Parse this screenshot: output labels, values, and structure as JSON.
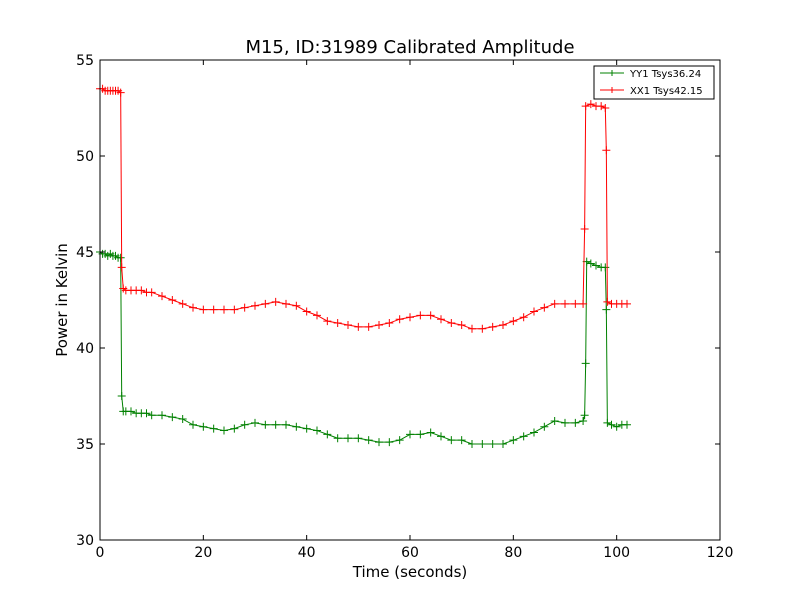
{
  "chart_data": {
    "type": "line",
    "title": "M15, ID:31989 Calibrated Amplitude",
    "xlabel": "Time (seconds)",
    "ylabel": "Power in Kelvin",
    "xlim": [
      0,
      120
    ],
    "ylim": [
      30,
      55
    ],
    "x_ticks": [
      "0",
      "20",
      "40",
      "60",
      "80",
      "100",
      "120"
    ],
    "y_ticks": [
      "30",
      "35",
      "40",
      "45",
      "50",
      "55"
    ],
    "grid": false,
    "legend_position": "top-right",
    "series": [
      {
        "name": "YY1 Tsys36.24",
        "color": "#008000",
        "marker": "+",
        "points": [
          [
            0.0,
            45.0
          ],
          [
            0.5,
            44.9
          ],
          [
            1.0,
            44.9
          ],
          [
            1.5,
            44.8
          ],
          [
            2.0,
            44.9
          ],
          [
            2.5,
            44.8
          ],
          [
            3.0,
            44.8
          ],
          [
            3.5,
            44.7
          ],
          [
            4.0,
            44.7
          ],
          [
            4.2,
            37.5
          ],
          [
            4.5,
            36.7
          ],
          [
            5.0,
            36.7
          ],
          [
            6.0,
            36.7
          ],
          [
            7.0,
            36.6
          ],
          [
            8.0,
            36.6
          ],
          [
            9.0,
            36.6
          ],
          [
            10.0,
            36.5
          ],
          [
            12.0,
            36.5
          ],
          [
            14.0,
            36.4
          ],
          [
            16.0,
            36.3
          ],
          [
            18.0,
            36.0
          ],
          [
            20.0,
            35.9
          ],
          [
            22.0,
            35.8
          ],
          [
            24.0,
            35.7
          ],
          [
            26.0,
            35.8
          ],
          [
            28.0,
            36.0
          ],
          [
            30.0,
            36.1
          ],
          [
            32.0,
            36.0
          ],
          [
            34.0,
            36.0
          ],
          [
            36.0,
            36.0
          ],
          [
            38.0,
            35.9
          ],
          [
            40.0,
            35.8
          ],
          [
            42.0,
            35.7
          ],
          [
            44.0,
            35.5
          ],
          [
            46.0,
            35.3
          ],
          [
            48.0,
            35.3
          ],
          [
            50.0,
            35.3
          ],
          [
            52.0,
            35.2
          ],
          [
            54.0,
            35.1
          ],
          [
            56.0,
            35.1
          ],
          [
            58.0,
            35.2
          ],
          [
            60.0,
            35.5
          ],
          [
            62.0,
            35.5
          ],
          [
            64.0,
            35.6
          ],
          [
            66.0,
            35.4
          ],
          [
            68.0,
            35.2
          ],
          [
            70.0,
            35.2
          ],
          [
            72.0,
            35.0
          ],
          [
            74.0,
            35.0
          ],
          [
            76.0,
            35.0
          ],
          [
            78.0,
            35.0
          ],
          [
            80.0,
            35.2
          ],
          [
            82.0,
            35.4
          ],
          [
            84.0,
            35.6
          ],
          [
            86.0,
            35.9
          ],
          [
            88.0,
            36.2
          ],
          [
            90.0,
            36.1
          ],
          [
            92.0,
            36.1
          ],
          [
            93.5,
            36.2
          ],
          [
            93.8,
            36.5
          ],
          [
            94.0,
            39.2
          ],
          [
            94.2,
            44.5
          ],
          [
            95.0,
            44.4
          ],
          [
            96.0,
            44.3
          ],
          [
            97.0,
            44.2
          ],
          [
            97.8,
            44.2
          ],
          [
            98.0,
            42.0
          ],
          [
            98.2,
            36.1
          ],
          [
            99.0,
            36.0
          ],
          [
            100.0,
            35.9
          ],
          [
            101.0,
            36.0
          ],
          [
            102.0,
            36.0
          ]
        ]
      },
      {
        "name": "XX1 Tsys42.15",
        "color": "#ff0000",
        "marker": "+",
        "points": [
          [
            0.0,
            53.5
          ],
          [
            0.5,
            53.5
          ],
          [
            1.0,
            53.4
          ],
          [
            1.5,
            53.4
          ],
          [
            2.0,
            53.4
          ],
          [
            2.5,
            53.4
          ],
          [
            3.0,
            53.4
          ],
          [
            3.5,
            53.4
          ],
          [
            4.0,
            53.3
          ],
          [
            4.2,
            44.2
          ],
          [
            4.5,
            43.1
          ],
          [
            5.0,
            43.0
          ],
          [
            6.0,
            43.0
          ],
          [
            7.0,
            43.0
          ],
          [
            8.0,
            43.0
          ],
          [
            9.0,
            42.9
          ],
          [
            10.0,
            42.9
          ],
          [
            12.0,
            42.7
          ],
          [
            14.0,
            42.5
          ],
          [
            16.0,
            42.3
          ],
          [
            18.0,
            42.1
          ],
          [
            20.0,
            42.0
          ],
          [
            22.0,
            42.0
          ],
          [
            24.0,
            42.0
          ],
          [
            26.0,
            42.0
          ],
          [
            28.0,
            42.1
          ],
          [
            30.0,
            42.2
          ],
          [
            32.0,
            42.3
          ],
          [
            34.0,
            42.4
          ],
          [
            36.0,
            42.3
          ],
          [
            38.0,
            42.2
          ],
          [
            40.0,
            41.9
          ],
          [
            42.0,
            41.7
          ],
          [
            44.0,
            41.4
          ],
          [
            46.0,
            41.3
          ],
          [
            48.0,
            41.2
          ],
          [
            50.0,
            41.1
          ],
          [
            52.0,
            41.1
          ],
          [
            54.0,
            41.2
          ],
          [
            56.0,
            41.3
          ],
          [
            58.0,
            41.5
          ],
          [
            60.0,
            41.6
          ],
          [
            62.0,
            41.7
          ],
          [
            64.0,
            41.7
          ],
          [
            66.0,
            41.5
          ],
          [
            68.0,
            41.3
          ],
          [
            70.0,
            41.2
          ],
          [
            72.0,
            41.0
          ],
          [
            74.0,
            41.0
          ],
          [
            76.0,
            41.1
          ],
          [
            78.0,
            41.2
          ],
          [
            80.0,
            41.4
          ],
          [
            82.0,
            41.6
          ],
          [
            84.0,
            41.9
          ],
          [
            86.0,
            42.1
          ],
          [
            88.0,
            42.3
          ],
          [
            90.0,
            42.3
          ],
          [
            92.0,
            42.3
          ],
          [
            93.5,
            42.3
          ],
          [
            93.8,
            46.2
          ],
          [
            94.0,
            52.6
          ],
          [
            95.0,
            52.7
          ],
          [
            96.0,
            52.6
          ],
          [
            97.0,
            52.6
          ],
          [
            97.8,
            52.5
          ],
          [
            98.0,
            50.3
          ],
          [
            98.2,
            42.4
          ],
          [
            99.0,
            42.3
          ],
          [
            100.0,
            42.3
          ],
          [
            101.0,
            42.3
          ],
          [
            102.0,
            42.3
          ]
        ]
      }
    ]
  }
}
